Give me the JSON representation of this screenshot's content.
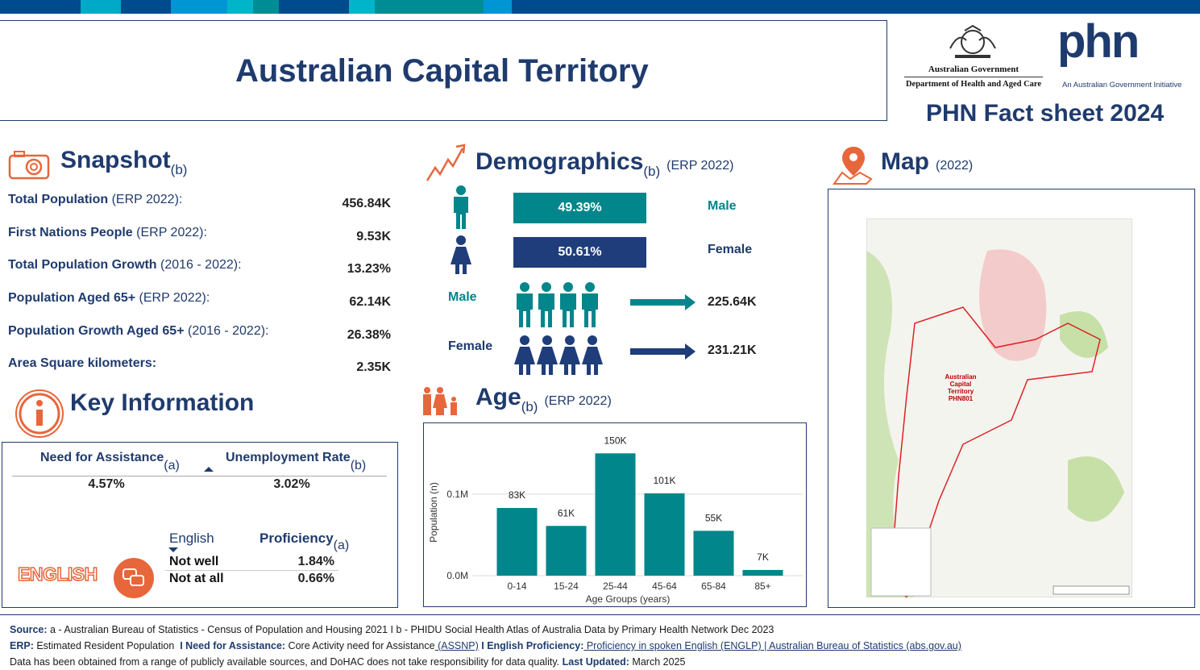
{
  "header": {
    "title": "Australian Capital Territory",
    "gov": "Australian Government",
    "dept": "Department of Health and Aged Care",
    "phn": "phn",
    "phn_sub": "An Australian Government Initiative",
    "factsheet": "PHN Fact sheet 2024"
  },
  "snapshot": {
    "title": "Snapshot",
    "sup": "(b)",
    "rows": [
      {
        "label": "Total Population",
        "note": "(ERP 2022):",
        "value": "456.84K"
      },
      {
        "label": "First Nations People",
        "note": "(ERP 2022):",
        "value": "9.53K"
      },
      {
        "label": "Total Population Growth",
        "note": "(2016 - 2022):",
        "value": "13.23%"
      },
      {
        "label": "Population Aged 65+",
        "note": "(ERP 2022):",
        "value": "62.14K"
      },
      {
        "label": "Population Growth Aged 65+",
        "note": "(2016 - 2022):",
        "value": "26.38%"
      },
      {
        "label": "Area Square kilometers:",
        "value": "2.35K"
      }
    ]
  },
  "demographics": {
    "title": "Demographics",
    "sup": "(b)",
    "note": "(ERP 2022)",
    "share": [
      {
        "value": "49.39%",
        "label": "Male"
      },
      {
        "value": "50.61%",
        "label": "Female"
      }
    ],
    "counts": [
      {
        "label": "Male",
        "value": "225.64K"
      },
      {
        "label": "Female",
        "value": "231.21K"
      }
    ]
  },
  "age": {
    "title": "Age",
    "sup": "(b)",
    "note": "(ERP 2022)"
  },
  "chart_data": {
    "type": "bar",
    "categories": [
      "0-14",
      "15-24",
      "25-44",
      "45-64",
      "65-84",
      "85+"
    ],
    "values": [
      83000,
      61000,
      150000,
      101000,
      55000,
      7000
    ],
    "value_labels": [
      "83K",
      "61K",
      "150K",
      "101K",
      "55K",
      "7K"
    ],
    "ylim": [
      0,
      175000
    ],
    "yticks": [
      {
        "value": 0,
        "label": "0.0M"
      },
      {
        "value": 100000,
        "label": "0.1M"
      }
    ],
    "x_label": "Age Groups (years)",
    "y_label": "Population (n)",
    "color": "#00868b",
    "grid": true
  },
  "map": {
    "title": "Map",
    "note": "(2022)",
    "region_label": [
      "Australian",
      "Capital",
      "Territory",
      "PHN801"
    ]
  },
  "key_info": {
    "title": "Key Information",
    "metrics": [
      {
        "label": "Need for Assistance",
        "sup": "(a)",
        "value": "4.57%"
      },
      {
        "label": "Unemployment Rate",
        "sup": "(b)",
        "value": "3.02%"
      }
    ],
    "english": {
      "badge": "ENGLISH",
      "col1": "English",
      "col2": "Proficiency",
      "sup": "(a)",
      "rows": [
        {
          "label": "Not well",
          "value": "1.84%"
        },
        {
          "label": "Not at all",
          "value": "0.66%"
        }
      ]
    }
  },
  "footer": {
    "lines": [
      [
        {
          "text": "Source:",
          "style": "bold"
        },
        {
          "text": " a - Australian Bureau of Statistics - Census of Population and Housing 2021 I b - PHIDU Social Health Atlas of Australia Data by Primary Health Network Dec 2023",
          "style": "plain"
        }
      ],
      [
        {
          "text": "ERP:",
          "style": "bold"
        },
        {
          "text": " Estimated Resident Population ",
          "style": "plain"
        },
        {
          "text": " I Need for Assistance:",
          "style": "bold"
        },
        {
          "text": " Core Activity need for Assistance",
          "style": "plain"
        },
        {
          "text": " (ASSNP)",
          "style": "link"
        },
        {
          "text": " I English Proficiency:",
          "style": "bold"
        },
        {
          "text": " Proficiency in spoken English (ENGLP) | Australian Bureau of Statistics (abs.gov.au)",
          "style": "link"
        }
      ],
      [
        {
          "text": "Data has been obtained from a range of publicly available sources, and DoHAC does not take responsibility for data quality. ",
          "style": "plain"
        },
        {
          "text": "Last Updated:",
          "style": "bold"
        },
        {
          "text": " March 2025",
          "style": "plain"
        }
      ]
    ]
  }
}
